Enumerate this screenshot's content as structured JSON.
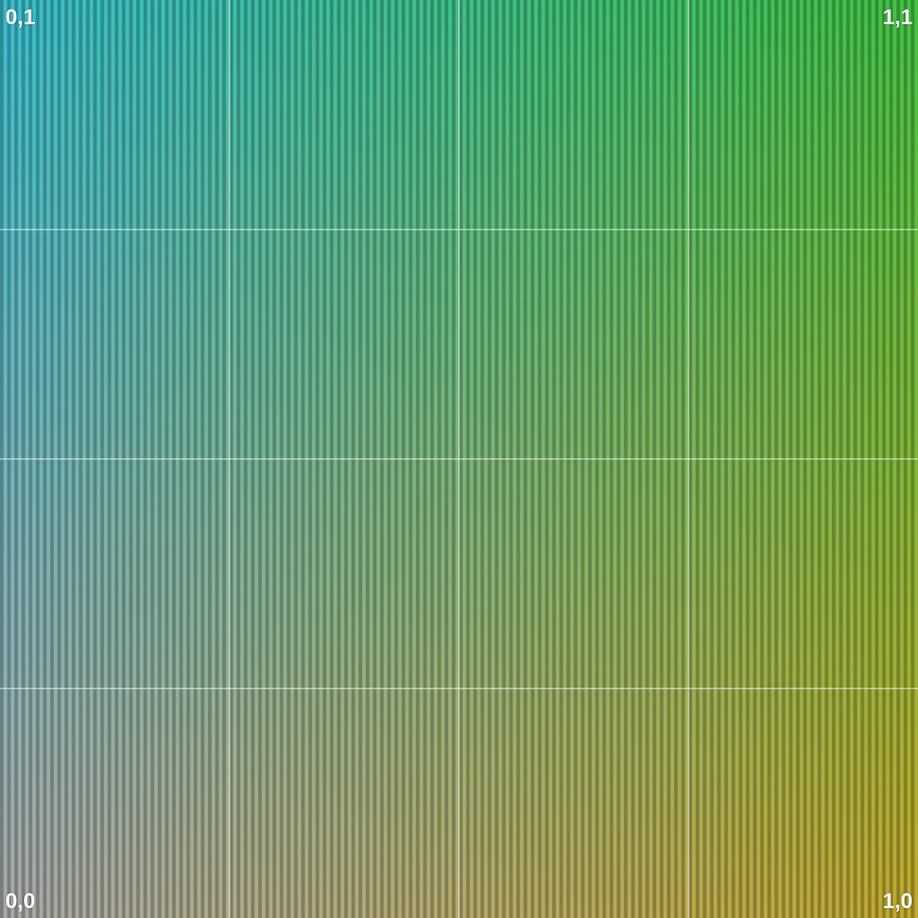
{
  "corners": {
    "top_left": "0,1",
    "top_right": "1,1",
    "bottom_left": "0,0",
    "bottom_right": "1,0"
  },
  "colors": {
    "top_left": "#35b4c4",
    "top_right": "#3fb83f",
    "bottom_left": "#a0a0a0",
    "bottom_right": "#b7a02a",
    "grid_line": "#ffffff",
    "label_text": "#ffffff"
  },
  "grid": {
    "divisions": 4
  }
}
